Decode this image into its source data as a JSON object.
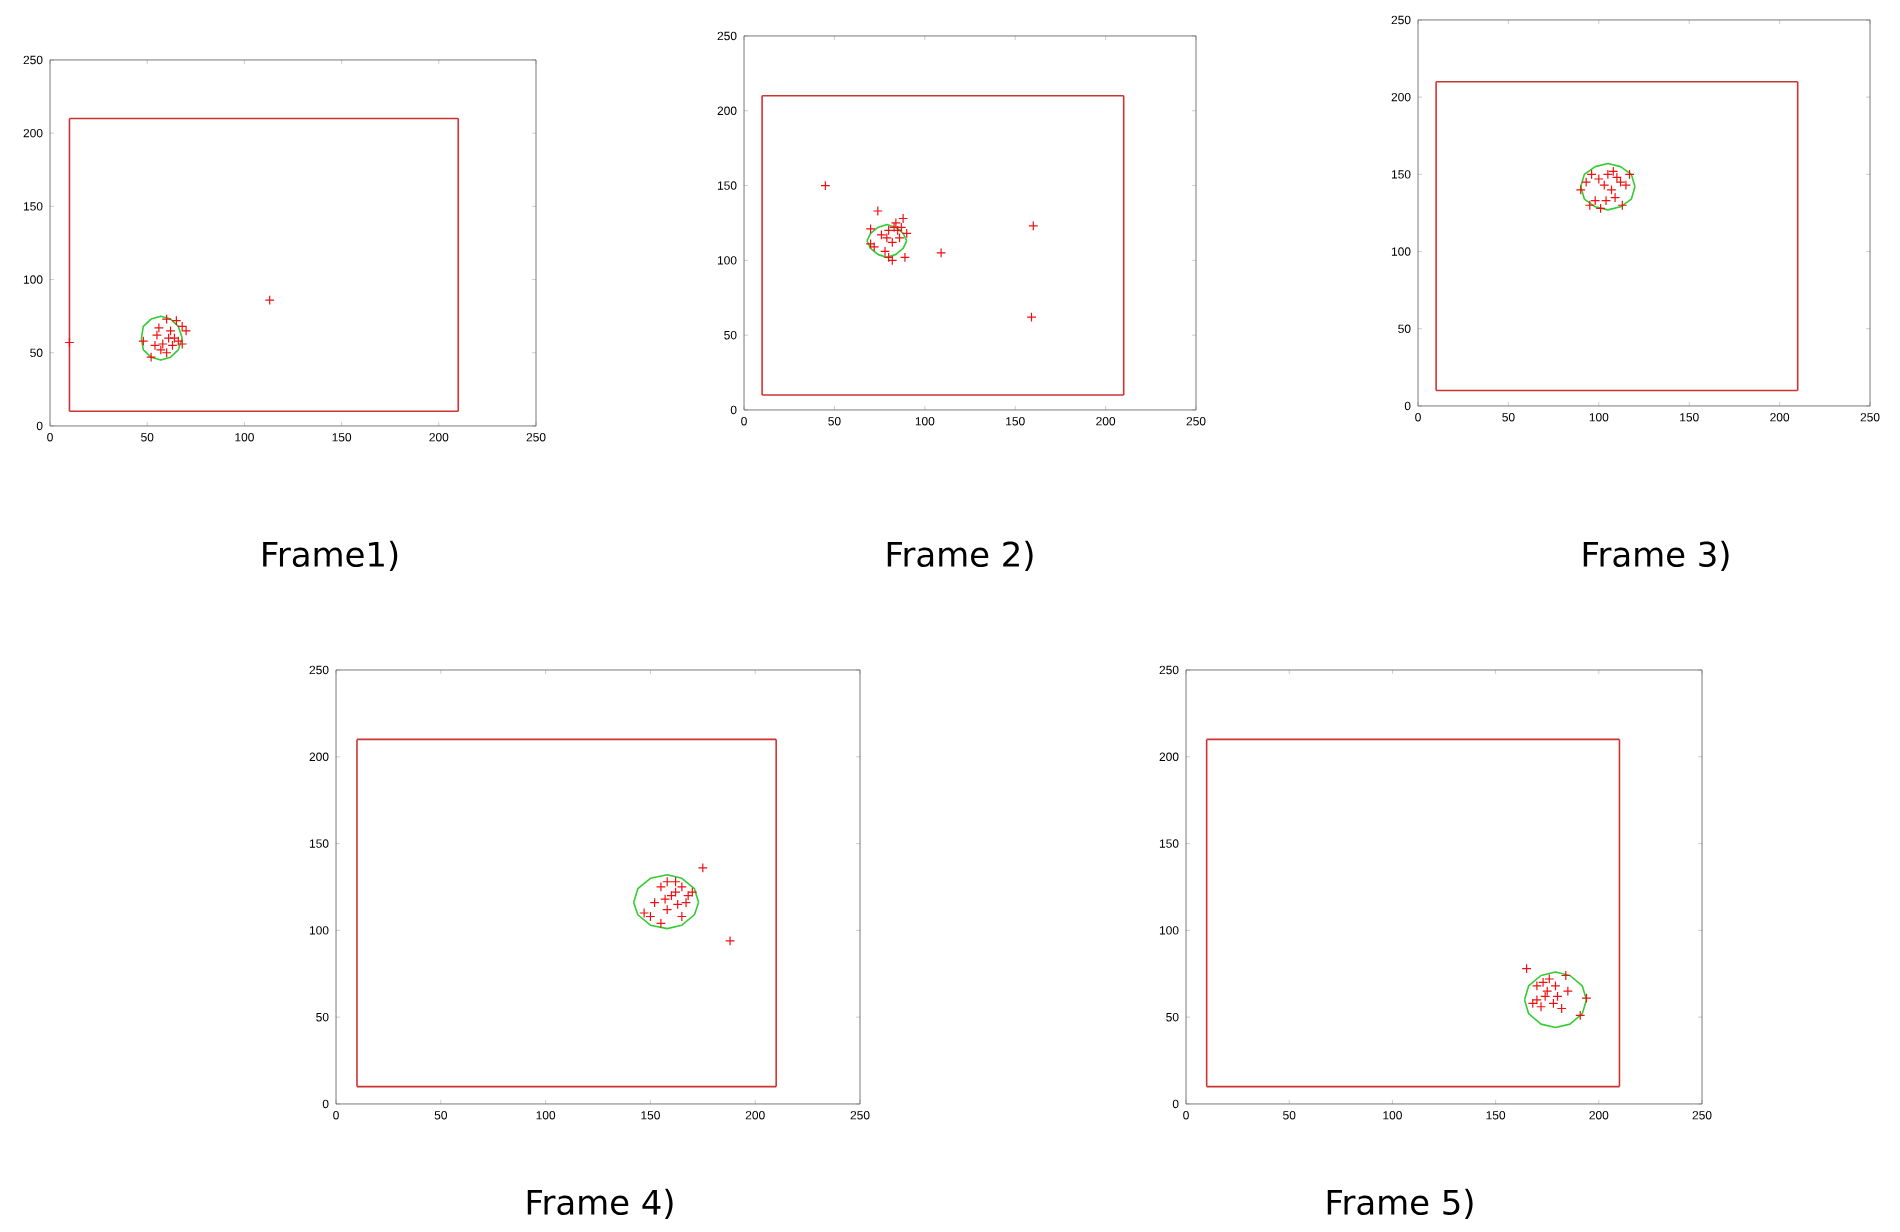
{
  "chart_data": [
    {
      "type": "scatter",
      "title": "Frame1)",
      "xlim": [
        0,
        250
      ],
      "ylim": [
        0,
        250
      ],
      "xticks": [
        0,
        50,
        100,
        150,
        200,
        250
      ],
      "yticks": [
        0,
        50,
        100,
        150,
        200,
        250
      ],
      "grid": false,
      "series": [
        {
          "type": "line",
          "color": "#cc3333",
          "marker": "none",
          "x": [
            10,
            210
          ],
          "values": [
            10,
            10
          ]
        },
        {
          "type": "line",
          "color": "#cc3333",
          "marker": "none",
          "x": [
            10,
            210
          ],
          "values": [
            210,
            210
          ]
        },
        {
          "type": "line",
          "color": "#cc3333",
          "marker": "none",
          "x": [
            10,
            10
          ],
          "values": [
            10,
            210
          ]
        },
        {
          "type": "line",
          "color": "#cc3333",
          "marker": "none",
          "x": [
            210,
            210
          ],
          "values": [
            10,
            210
          ]
        },
        {
          "type": "line",
          "color": "#33cc33",
          "marker": "none",
          "x": [
            47,
            48,
            52,
            57,
            62,
            66,
            68
          ],
          "values": [
            60,
            68,
            73,
            75,
            73,
            68,
            60
          ]
        },
        {
          "type": "line",
          "color": "#33cc33",
          "marker": "none",
          "x": [
            47,
            48,
            52,
            57,
            62,
            66,
            68
          ],
          "values": [
            60,
            52,
            47,
            45,
            47,
            52,
            60
          ]
        },
        {
          "color": "#ee1111",
          "marker": "cross",
          "x": [
            10,
            113,
            60,
            65,
            68,
            70,
            62,
            55,
            48,
            58,
            63,
            66,
            60,
            52,
            57,
            64,
            68,
            61,
            56,
            54
          ],
          "values": [
            57,
            86,
            73,
            72,
            68,
            65,
            65,
            62,
            58,
            56,
            55,
            58,
            50,
            47,
            52,
            60,
            56,
            60,
            67,
            55
          ]
        }
      ]
    },
    {
      "type": "scatter",
      "title": "Frame 2)",
      "xlim": [
        0,
        250
      ],
      "ylim": [
        0,
        250
      ],
      "xticks": [
        0,
        50,
        100,
        150,
        200,
        250
      ],
      "yticks": [
        0,
        50,
        100,
        150,
        200,
        250
      ],
      "grid": false,
      "series": [
        {
          "type": "line",
          "color": "#cc3333",
          "marker": "none",
          "x": [
            10,
            210
          ],
          "values": [
            10,
            10
          ]
        },
        {
          "type": "line",
          "color": "#cc3333",
          "marker": "none",
          "x": [
            10,
            210
          ],
          "values": [
            210,
            210
          ]
        },
        {
          "type": "line",
          "color": "#cc3333",
          "marker": "none",
          "x": [
            10,
            10
          ],
          "values": [
            10,
            210
          ]
        },
        {
          "type": "line",
          "color": "#cc3333",
          "marker": "none",
          "x": [
            210,
            210
          ],
          "values": [
            10,
            210
          ]
        },
        {
          "type": "line",
          "color": "#33cc33",
          "marker": "none",
          "x": [
            68,
            70,
            74,
            79,
            84,
            88,
            90
          ],
          "values": [
            113,
            118,
            122,
            124,
            122,
            118,
            113
          ]
        },
        {
          "type": "line",
          "color": "#33cc33",
          "marker": "none",
          "x": [
            68,
            70,
            74,
            79,
            84,
            88,
            90
          ],
          "values": [
            113,
            108,
            104,
            102,
            104,
            108,
            113
          ]
        },
        {
          "color": "#ee1111",
          "marker": "cross",
          "x": [
            45,
            109,
            160,
            159,
            74,
            70,
            70,
            72,
            76,
            80,
            84,
            88,
            90,
            86,
            82,
            78,
            80,
            82,
            89,
            85,
            83,
            87,
            79
          ],
          "values": [
            150,
            105,
            123,
            62,
            133,
            121,
            111,
            109,
            117,
            120,
            125,
            128,
            118,
            115,
            112,
            106,
            102,
            100,
            102,
            120,
            122,
            122,
            115
          ]
        }
      ]
    },
    {
      "type": "scatter",
      "title": "Frame 3)",
      "xlim": [
        0,
        250
      ],
      "ylim": [
        0,
        250
      ],
      "xticks": [
        0,
        50,
        100,
        150,
        200,
        250
      ],
      "yticks": [
        0,
        50,
        100,
        150,
        200,
        250
      ],
      "grid": false,
      "series": [
        {
          "type": "line",
          "color": "#cc3333",
          "marker": "none",
          "x": [
            10,
            210
          ],
          "values": [
            10,
            10
          ]
        },
        {
          "type": "line",
          "color": "#cc3333",
          "marker": "none",
          "x": [
            10,
            210
          ],
          "values": [
            210,
            210
          ]
        },
        {
          "type": "line",
          "color": "#cc3333",
          "marker": "none",
          "x": [
            10,
            10
          ],
          "values": [
            10,
            210
          ]
        },
        {
          "type": "line",
          "color": "#cc3333",
          "marker": "none",
          "x": [
            210,
            210
          ],
          "values": [
            10,
            210
          ]
        },
        {
          "type": "line",
          "color": "#33cc33",
          "marker": "none",
          "x": [
            90,
            92,
            98,
            105,
            112,
            118,
            120
          ],
          "values": [
            142,
            150,
            155,
            157,
            155,
            150,
            142
          ]
        },
        {
          "type": "line",
          "color": "#33cc33",
          "marker": "none",
          "x": [
            90,
            92,
            98,
            105,
            112,
            118,
            120
          ],
          "values": [
            142,
            134,
            129,
            127,
            129,
            134,
            142
          ]
        },
        {
          "color": "#ee1111",
          "marker": "cross",
          "x": [
            90,
            93,
            95,
            98,
            101,
            105,
            108,
            110,
            112,
            115,
            103,
            107,
            113,
            109,
            104,
            100,
            96,
            117
          ],
          "values": [
            140,
            145,
            130,
            133,
            128,
            150,
            152,
            148,
            145,
            143,
            143,
            140,
            130,
            135,
            133,
            147,
            150,
            150
          ]
        }
      ]
    },
    {
      "type": "scatter",
      "title": "Frame 4)",
      "xlim": [
        0,
        250
      ],
      "ylim": [
        0,
        250
      ],
      "xticks": [
        0,
        50,
        100,
        150,
        200,
        250
      ],
      "yticks": [
        0,
        50,
        100,
        150,
        200,
        250
      ],
      "grid": false,
      "series": [
        {
          "type": "line",
          "color": "#cc3333",
          "marker": "none",
          "x": [
            10,
            210
          ],
          "values": [
            10,
            10
          ]
        },
        {
          "type": "line",
          "color": "#cc3333",
          "marker": "none",
          "x": [
            10,
            210
          ],
          "values": [
            210,
            210
          ]
        },
        {
          "type": "line",
          "color": "#cc3333",
          "marker": "none",
          "x": [
            10,
            10
          ],
          "values": [
            10,
            210
          ]
        },
        {
          "type": "line",
          "color": "#cc3333",
          "marker": "none",
          "x": [
            210,
            210
          ],
          "values": [
            10,
            210
          ]
        },
        {
          "type": "line",
          "color": "#33cc33",
          "marker": "none",
          "x": [
            142,
            144,
            150,
            158,
            165,
            171,
            173
          ],
          "values": [
            116,
            124,
            130,
            132,
            130,
            124,
            116
          ]
        },
        {
          "type": "line",
          "color": "#33cc33",
          "marker": "none",
          "x": [
            142,
            144,
            150,
            158,
            165,
            171,
            173
          ],
          "values": [
            116,
            109,
            103,
            101,
            103,
            109,
            116
          ]
        },
        {
          "color": "#ee1111",
          "marker": "cross",
          "x": [
            175,
            188,
            147,
            150,
            155,
            152,
            155,
            158,
            162,
            165,
            168,
            170,
            160,
            163,
            158,
            165,
            157,
            162,
            167
          ],
          "values": [
            136,
            94,
            110,
            108,
            104,
            116,
            125,
            128,
            128,
            125,
            120,
            122,
            120,
            115,
            112,
            108,
            118,
            122,
            116
          ]
        }
      ]
    },
    {
      "type": "scatter",
      "title": "Frame 5)",
      "xlim": [
        0,
        250
      ],
      "ylim": [
        0,
        250
      ],
      "xticks": [
        0,
        50,
        100,
        150,
        200,
        250
      ],
      "yticks": [
        0,
        50,
        100,
        150,
        200,
        250
      ],
      "grid": false,
      "series": [
        {
          "type": "line",
          "color": "#cc3333",
          "marker": "none",
          "x": [
            10,
            210
          ],
          "values": [
            10,
            10
          ]
        },
        {
          "type": "line",
          "color": "#cc3333",
          "marker": "none",
          "x": [
            10,
            210
          ],
          "values": [
            210,
            210
          ]
        },
        {
          "type": "line",
          "color": "#cc3333",
          "marker": "none",
          "x": [
            10,
            10
          ],
          "values": [
            10,
            210
          ]
        },
        {
          "type": "line",
          "color": "#cc3333",
          "marker": "none",
          "x": [
            210,
            210
          ],
          "values": [
            10,
            210
          ]
        },
        {
          "type": "line",
          "color": "#33cc33",
          "marker": "none",
          "x": [
            164,
            166,
            172,
            179,
            186,
            192,
            194
          ],
          "values": [
            60,
            68,
            74,
            76,
            74,
            68,
            60
          ]
        },
        {
          "type": "line",
          "color": "#33cc33",
          "marker": "none",
          "x": [
            164,
            166,
            172,
            179,
            186,
            192,
            194
          ],
          "values": [
            60,
            52,
            46,
            44,
            46,
            52,
            60
          ]
        },
        {
          "color": "#ee1111",
          "marker": "cross",
          "x": [
            165,
            184,
            194,
            191,
            170,
            173,
            175,
            170,
            172,
            178,
            180,
            182,
            185,
            168,
            176,
            174,
            179
          ],
          "values": [
            78,
            74,
            61,
            51,
            68,
            70,
            65,
            60,
            56,
            58,
            62,
            55,
            65,
            58,
            72,
            62,
            68
          ]
        }
      ]
    }
  ]
}
